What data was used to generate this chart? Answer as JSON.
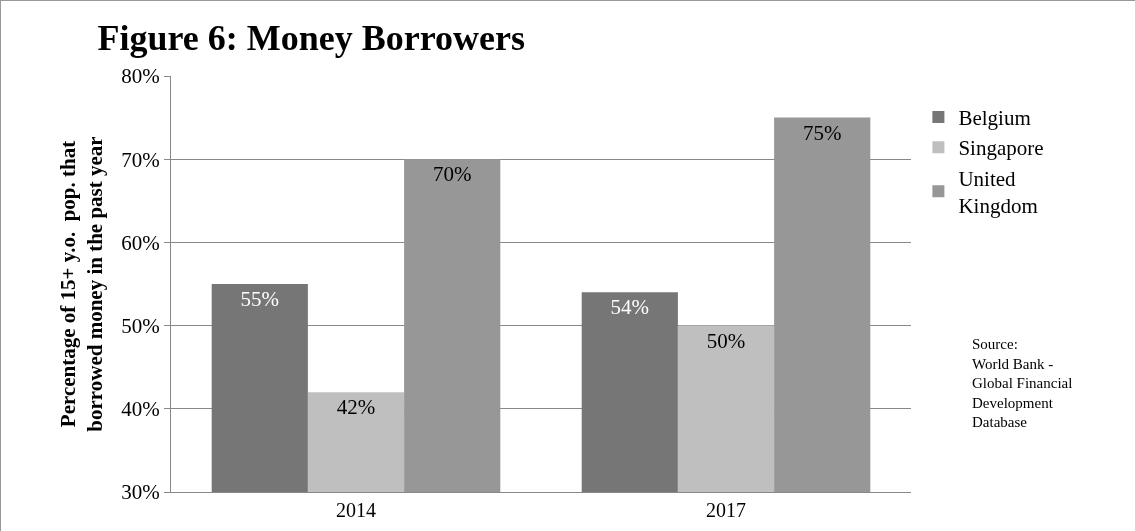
{
  "chart_data": {
    "type": "bar",
    "title": "Figure 6: Money Borrowers",
    "ylabel": "Percentage of 15+ y.o.  pop. that\nborrowed money in the past year",
    "categories": [
      "2014",
      "2017"
    ],
    "series": [
      {
        "name": "Belgium",
        "color": "#767676",
        "values": [
          55,
          54
        ],
        "value_labels": [
          "55%",
          "54%"
        ]
      },
      {
        "name": "Singapore",
        "color": "#bfbfbf",
        "values": [
          42,
          50
        ],
        "value_labels": [
          "42%",
          "50%"
        ]
      },
      {
        "name": "United\nKingdom",
        "color": "#979797",
        "values": [
          70,
          75
        ],
        "value_labels": [
          "70%",
          "75%"
        ]
      }
    ],
    "ylim": [
      30,
      80
    ],
    "yticks": [
      {
        "value": 30,
        "label": "30%"
      },
      {
        "value": 40,
        "label": "40%"
      },
      {
        "value": 50,
        "label": "50%"
      },
      {
        "value": 60,
        "label": "60%"
      },
      {
        "value": 70,
        "label": "70%"
      },
      {
        "value": 80,
        "label": "80%"
      }
    ],
    "grid": "y",
    "legend": "right",
    "annotations": [
      "Source:\nWorld Bank -\nGlobal Financial\nDevelopment\nDatabase"
    ]
  }
}
